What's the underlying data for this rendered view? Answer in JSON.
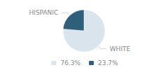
{
  "chart_data": {
    "type": "pie",
    "categories": [
      "76.3%",
      "23.7%"
    ],
    "values": [
      76.3,
      23.7
    ],
    "colors": [
      "#d9e4ed",
      "#2e5f7b"
    ],
    "annotations": [
      "WHITE",
      "HISPANIC"
    ],
    "legend": "bottom"
  }
}
